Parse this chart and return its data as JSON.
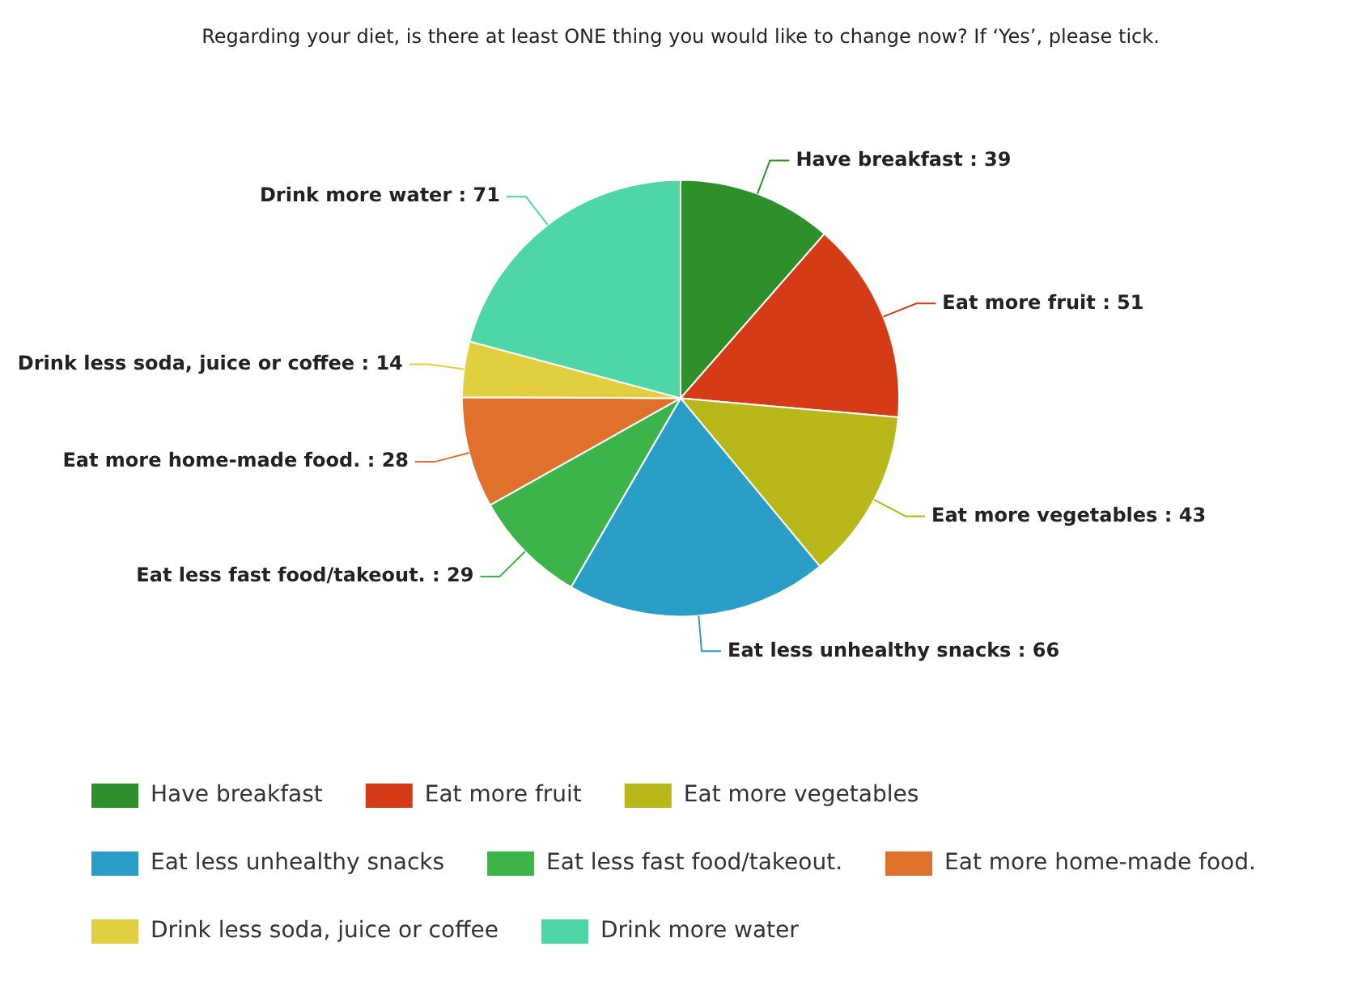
{
  "chart_data": {
    "type": "pie",
    "title": "Regarding your diet, is there at least ONE thing you would like to change now? If ‘Yes’, please tick.",
    "categories": [
      "Have breakfast",
      "Eat more fruit",
      "Eat more vegetables",
      "Eat less unhealthy snacks",
      "Eat less fast food/takeout.",
      "Eat more home-made food.",
      "Drink less soda, juice or coffee",
      "Drink more water"
    ],
    "values": [
      39,
      51,
      43,
      66,
      29,
      28,
      14,
      71
    ],
    "colors": [
      "#2f8f2a",
      "#d63b17",
      "#b8b81a",
      "#2a9ec6",
      "#3db44a",
      "#e0712c",
      "#e2cf3f",
      "#4fd6a6"
    ],
    "value_labels": [
      ": 39",
      ": 51",
      ": 43",
      ": 66",
      ": 29",
      ": 28",
      ": 14",
      ": 71"
    ],
    "legend": "bottom"
  }
}
